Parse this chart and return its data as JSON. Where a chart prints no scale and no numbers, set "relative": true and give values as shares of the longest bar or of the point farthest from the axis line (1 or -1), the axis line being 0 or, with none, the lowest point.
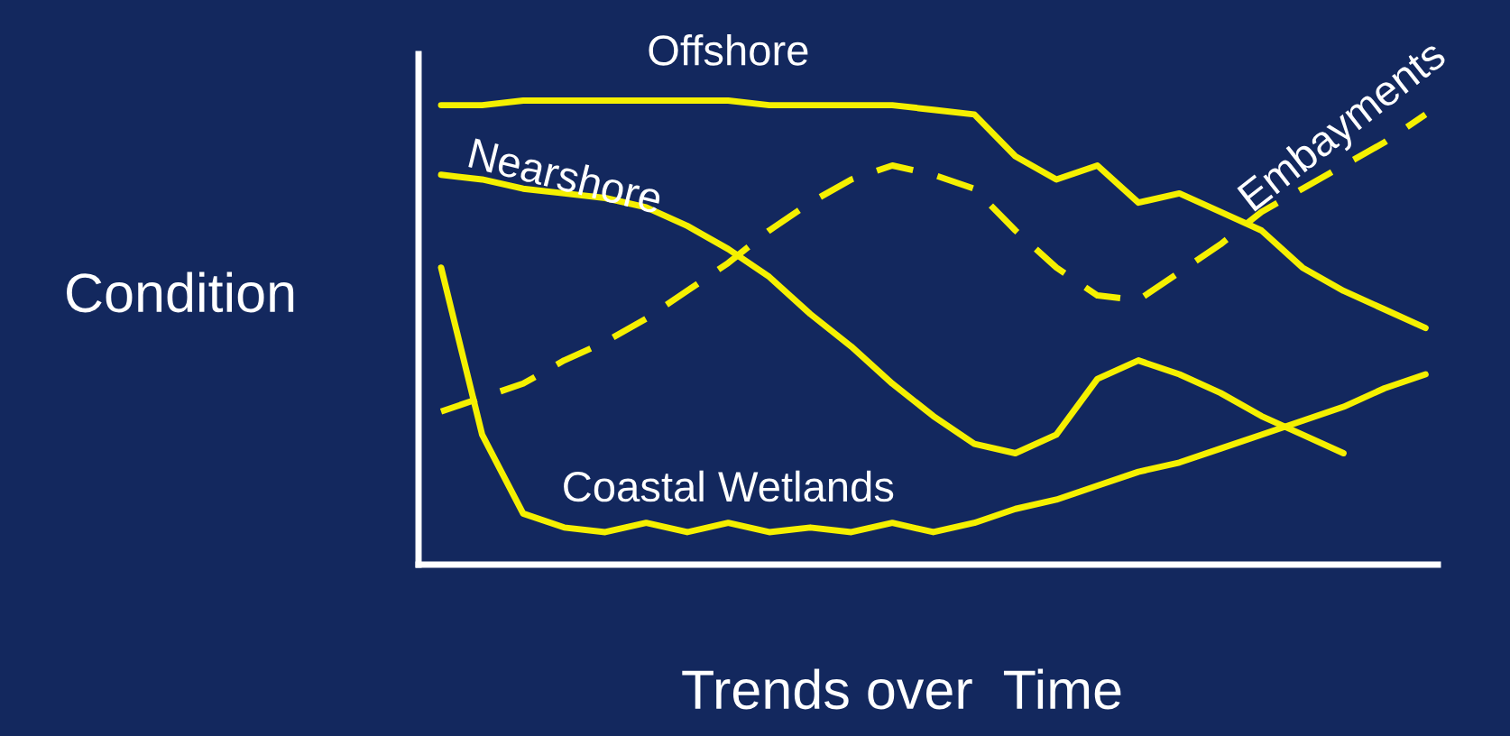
{
  "chart_data": {
    "type": "line",
    "relative": true,
    "xlabel": "Trends over  Time",
    "ylabel": "Condition",
    "grid": false,
    "legend": false,
    "marker": "none",
    "categories": [
      null,
      null,
      null,
      null,
      null,
      null,
      null,
      null,
      null,
      null,
      null,
      null,
      null,
      null,
      null,
      null,
      null,
      null,
      null,
      null,
      null,
      null,
      null,
      null,
      null
    ],
    "series": [
      {
        "name": "Offshore",
        "color": "#f5f000",
        "line_style": "solid",
        "values": [
          0.99,
          0.99,
          1.0,
          1.0,
          1.0,
          1.0,
          1.0,
          1.0,
          0.99,
          0.99,
          0.99,
          0.99,
          0.98,
          0.97,
          0.88,
          0.83,
          0.86,
          0.78,
          0.8,
          0.76,
          0.72,
          0.64,
          0.59,
          0.55,
          0.51
        ]
      },
      {
        "name": "Nearshore",
        "color": "#f5f000",
        "line_style": "solid",
        "values": [
          0.84,
          0.83,
          0.81,
          0.8,
          0.79,
          0.77,
          0.73,
          0.68,
          0.62,
          0.54,
          0.47,
          0.39,
          0.32,
          0.26,
          0.24,
          0.28,
          0.4,
          0.44,
          0.41,
          0.37,
          0.32,
          0.28,
          0.24,
          null,
          null
        ]
      },
      {
        "name": "Embayments",
        "color": "#f5f000",
        "line_style": "dashed",
        "values": [
          0.33,
          0.36,
          0.39,
          0.44,
          0.48,
          0.53,
          0.59,
          0.65,
          0.72,
          0.78,
          0.83,
          0.86,
          0.84,
          0.81,
          0.72,
          0.64,
          0.58,
          0.57,
          0.63,
          0.69,
          0.76,
          0.81,
          0.86,
          0.91,
          0.97
        ]
      },
      {
        "name": "Coastal Wetlands",
        "color": "#f5f000",
        "line_style": "solid",
        "values": [
          0.64,
          0.28,
          0.11,
          0.08,
          0.07,
          0.09,
          0.07,
          0.09,
          0.07,
          0.08,
          0.07,
          0.09,
          0.07,
          0.09,
          0.12,
          0.14,
          0.17,
          0.2,
          0.22,
          0.25,
          0.28,
          0.31,
          0.34,
          0.38,
          0.41
        ]
      }
    ]
  }
}
